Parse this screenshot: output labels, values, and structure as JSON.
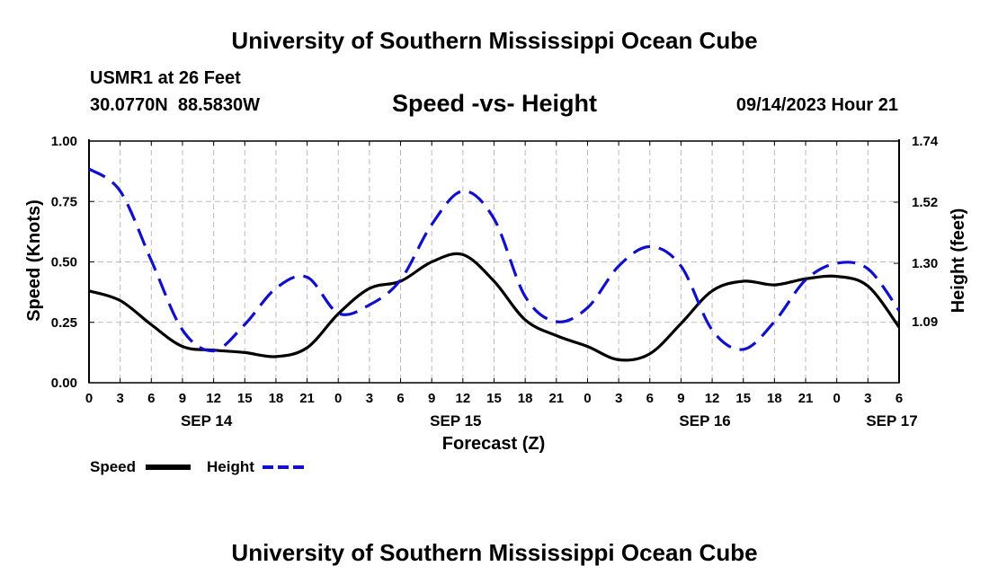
{
  "page": {
    "title": "University of Southern Mississippi Ocean Cube",
    "station": "USMR1 at 26 Feet",
    "coords": "30.0770N  88.5830W",
    "subtitle": "Speed -vs- Height",
    "timestamp": "09/14/2023 Hour 21",
    "footer_title": "University of Southern Mississippi Ocean Cube"
  },
  "chart_data": {
    "type": "line",
    "title": "Speed -vs- Height",
    "xlabel": "Forecast (Z)",
    "ylabel_left": "Speed (Knots)",
    "ylabel_right": "Height (feet)",
    "x_ticks": [
      "0",
      "3",
      "6",
      "9",
      "12",
      "15",
      "18",
      "21",
      "0",
      "3",
      "6",
      "9",
      "12",
      "15",
      "18",
      "21",
      "0",
      "3",
      "6",
      "9",
      "12",
      "15",
      "18",
      "21",
      "0",
      "3",
      "6"
    ],
    "date_labels": [
      {
        "label": "SEP 14",
        "tick_index": 4
      },
      {
        "label": "SEP 15",
        "tick_index": 12
      },
      {
        "label": "SEP 16",
        "tick_index": 20
      },
      {
        "label": "SEP 17",
        "tick_index": 26
      }
    ],
    "y_left": {
      "ticks": [
        "0.00",
        "0.25",
        "0.50",
        "0.75",
        "1.00"
      ],
      "lim": [
        0,
        1
      ]
    },
    "y_right": {
      "ticks": [
        "1.09",
        "1.30",
        "1.52",
        "1.74"
      ],
      "values": [
        1.09,
        1.3,
        1.52,
        1.74
      ],
      "lim": [
        0.87,
        1.74
      ]
    },
    "grid": true,
    "colors": {
      "speed": "#000000",
      "height": "#1010cc",
      "grid": "#bbbbbb"
    },
    "series": [
      {
        "name": "Speed",
        "axis": "left",
        "style": "solid",
        "x": [
          0,
          3,
          6,
          9,
          12,
          15,
          18,
          21,
          24,
          27,
          30,
          33,
          36,
          39,
          42,
          45,
          48,
          51,
          54,
          57,
          60,
          63,
          66,
          69,
          72,
          75,
          78
        ],
        "values": [
          0.38,
          0.34,
          0.24,
          0.15,
          0.135,
          0.125,
          0.108,
          0.145,
          0.285,
          0.39,
          0.42,
          0.5,
          0.53,
          0.42,
          0.26,
          0.195,
          0.15,
          0.095,
          0.12,
          0.245,
          0.38,
          0.42,
          0.405,
          0.43,
          0.44,
          0.4,
          0.23
        ]
      },
      {
        "name": "Height",
        "axis": "right",
        "style": "dashed",
        "x": [
          0,
          3,
          6,
          9,
          12,
          15,
          18,
          21,
          24,
          27,
          30,
          33,
          36,
          39,
          42,
          45,
          48,
          51,
          54,
          57,
          60,
          63,
          66,
          69,
          72,
          75,
          78
        ],
        "values": [
          1.64,
          1.56,
          1.31,
          1.06,
          0.985,
          1.08,
          1.21,
          1.25,
          1.12,
          1.15,
          1.24,
          1.44,
          1.56,
          1.46,
          1.18,
          1.09,
          1.14,
          1.29,
          1.36,
          1.29,
          1.06,
          0.99,
          1.09,
          1.24,
          1.3,
          1.28,
          1.13
        ]
      }
    ],
    "legend": [
      {
        "label": "Speed",
        "style": "solid",
        "color": "#000000"
      },
      {
        "label": "Height",
        "style": "dashed",
        "color": "#1010cc"
      }
    ]
  }
}
